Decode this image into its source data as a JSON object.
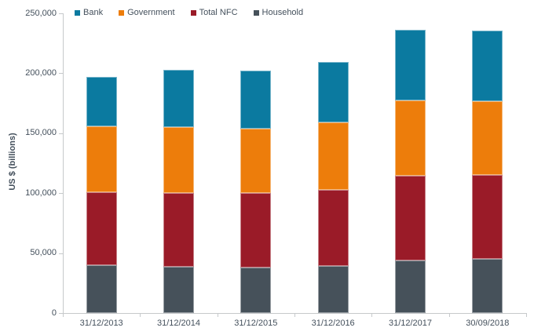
{
  "chart_data": {
    "type": "bar",
    "stacked": true,
    "title": "",
    "xlabel": "",
    "ylabel": "US $ (billions)",
    "ylim": [
      0,
      250000
    ],
    "ytick_interval": 50000,
    "ytick_labels": [
      "0",
      "50,000",
      "100,000",
      "150,000",
      "200,000",
      "250,000"
    ],
    "grid": false,
    "legend_position": "top-left",
    "categories": [
      "31/12/2013",
      "31/12/2014",
      "31/12/2015",
      "31/12/2016",
      "31/12/2017",
      "30/09/2018"
    ],
    "series": [
      {
        "name": "Household",
        "color": "#46515A",
        "values": [
          40000,
          38500,
          38000,
          39500,
          44000,
          45000
        ]
      },
      {
        "name": "Total NFC",
        "color": "#9A1B28",
        "values": [
          61000,
          61500,
          62000,
          63000,
          70500,
          70000
        ]
      },
      {
        "name": "Government",
        "color": "#ED7D0B",
        "values": [
          54500,
          55000,
          54000,
          56500,
          63000,
          61500
        ]
      },
      {
        "name": "Bank",
        "color": "#0B7AA0",
        "values": [
          41500,
          48000,
          48500,
          50500,
          59000,
          59000
        ]
      }
    ],
    "totals": [
      197000,
      203000,
      202500,
      209500,
      236500,
      235500
    ],
    "legend_items": [
      {
        "label": "Bank",
        "color": "#0B7AA0"
      },
      {
        "label": "Government",
        "color": "#ED7D0B"
      },
      {
        "label": "Total NFC",
        "color": "#9A1B28"
      },
      {
        "label": "Household",
        "color": "#46515A"
      }
    ],
    "colors": {
      "axis_line": "#C6C9CB",
      "text": "#44505C",
      "background": "#FFFFFF"
    }
  }
}
